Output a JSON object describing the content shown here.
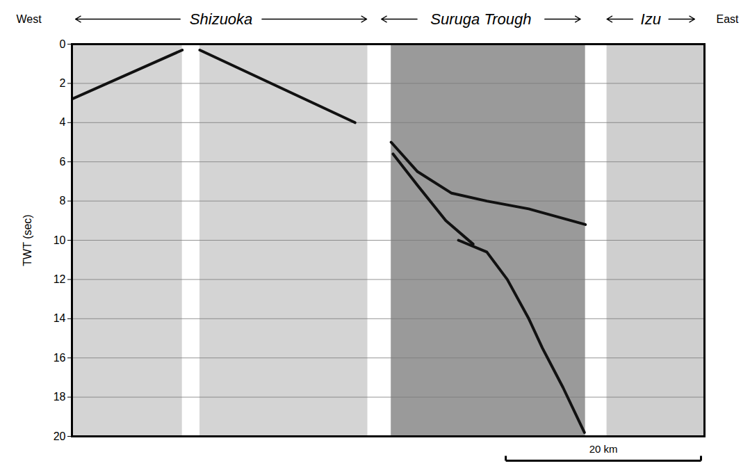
{
  "chart_data": {
    "type": "seismic_section",
    "ylabel": "TWT (sec)",
    "xlim": [
      0,
      64.8
    ],
    "ylim": [
      0,
      20
    ],
    "yticks": [
      0,
      2,
      4,
      6,
      8,
      10,
      12,
      14,
      16,
      18,
      20
    ],
    "grid": true,
    "tick_labels": "y",
    "direction_labels": [
      "West",
      "East"
    ],
    "sections": [
      {
        "name": "Shizuoka",
        "x": [
          0.36,
          30.2
        ],
        "data": [
          [
            0,
            11.3
          ],
          [
            13.1,
            30.3
          ]
        ],
        "color": "#d4d4d4"
      },
      {
        "name": "Suruga Trough",
        "x": [
          31.7,
          52.1
        ],
        "data": [
          [
            32.7,
            52.6
          ]
        ],
        "color": "#9a9a9a"
      },
      {
        "name": "Izu",
        "x": [
          54.8,
          63.8
        ],
        "data": [
          [
            54.8,
            64.8
          ]
        ],
        "color": "#cfcfcf"
      }
    ],
    "series": [
      {
        "x": [
          0,
          11.3
        ],
        "values": [
          2.8,
          0.3
        ],
        "color": "#111111"
      },
      {
        "x": [
          13.1,
          29.0
        ],
        "values": [
          0.3,
          4.0
        ],
        "color": "#111111"
      },
      {
        "x": [
          32.7,
          35.4,
          38.9,
          42.5,
          46.8,
          52.6
        ],
        "values": [
          5.0,
          6.5,
          7.6,
          8.0,
          8.4,
          9.2
        ],
        "color": "#111111"
      },
      {
        "x": [
          32.9,
          35.4,
          38.3,
          41.1
        ],
        "values": [
          5.6,
          7.2,
          9.0,
          10.2
        ],
        "color": "#111111"
      },
      {
        "x": [
          39.6,
          42.5,
          44.6,
          46.8,
          48.2,
          50.3,
          52.5
        ],
        "values": [
          10.0,
          10.6,
          12.0,
          14.0,
          15.5,
          17.5,
          19.8
        ],
        "color": "#111111"
      }
    ],
    "scale_bar": {
      "label": "20 km",
      "length": 20
    }
  }
}
